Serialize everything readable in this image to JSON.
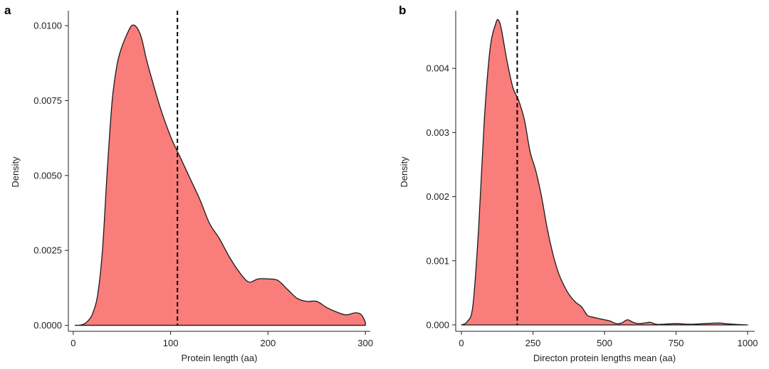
{
  "colors": {
    "fill": "#f87d7b",
    "stroke": "#1a1a1a",
    "axis": "#222222",
    "background": "#ffffff"
  },
  "chart_data": [
    {
      "type": "area",
      "panel": "a",
      "xlabel": "Protein length (aa)",
      "ylabel": "Density",
      "xlim": [
        -5,
        305
      ],
      "ylim": [
        -0.0002,
        0.0105
      ],
      "xticks": [
        0,
        100,
        200,
        300
      ],
      "xtick_labels": [
        "0",
        "100",
        "200",
        "300"
      ],
      "yticks": [
        0,
        0.0025,
        0.005,
        0.0075,
        0.01
      ],
      "ytick_labels": [
        "0.0000",
        "0.0025",
        "0.0050",
        "0.0075",
        "0.0100"
      ],
      "vline": 107,
      "series": [
        {
          "name": "density",
          "x": [
            2,
            8,
            12,
            16,
            20,
            25,
            30,
            35,
            40,
            45,
            50,
            55,
            60,
            65,
            70,
            75,
            80,
            90,
            100,
            107,
            110,
            120,
            130,
            140,
            150,
            160,
            170,
            180,
            190,
            200,
            210,
            220,
            230,
            240,
            250,
            260,
            270,
            280,
            290,
            296,
            300
          ],
          "y": [
            0,
            1e-05,
            6e-05,
            0.00018,
            0.0004,
            0.001,
            0.0025,
            0.0052,
            0.0075,
            0.0087,
            0.0093,
            0.0097,
            0.01,
            0.00995,
            0.0096,
            0.0089,
            0.0083,
            0.0072,
            0.0063,
            0.0058,
            0.0056,
            0.0049,
            0.0042,
            0.0034,
            0.0029,
            0.0023,
            0.0018,
            0.00145,
            0.00155,
            0.00155,
            0.0015,
            0.0012,
            0.0009,
            0.0008,
            0.0008,
            0.0006,
            0.00045,
            0.00035,
            0.00042,
            0.00035,
            0.0001
          ]
        }
      ]
    },
    {
      "type": "area",
      "panel": "b",
      "xlabel": "Directon protein lengths mean (aa)",
      "ylabel": "Density",
      "xlim": [
        -20,
        1025
      ],
      "ylim": [
        -0.0001,
        0.0049
      ],
      "xticks": [
        0,
        250,
        500,
        750,
        1000
      ],
      "xtick_labels": [
        "0",
        "250",
        "500",
        "750",
        "1000"
      ],
      "yticks": [
        0,
        0.001,
        0.002,
        0.003,
        0.004
      ],
      "ytick_labels": [
        "0.000",
        "0.001",
        "0.002",
        "0.003",
        "0.004"
      ],
      "vline": 195,
      "series": [
        {
          "name": "density",
          "x": [
            0,
            20,
            40,
            60,
            80,
            100,
            120,
            130,
            140,
            160,
            180,
            200,
            220,
            240,
            260,
            280,
            300,
            320,
            340,
            360,
            380,
            400,
            420,
            440,
            460,
            480,
            500,
            520,
            540,
            560,
            580,
            600,
            620,
            640,
            660,
            680,
            700,
            750,
            800,
            850,
            900,
            920,
            950,
            1000
          ],
          "y": [
            0,
            5e-05,
            0.0003,
            0.0015,
            0.0032,
            0.0043,
            0.0047,
            0.00475,
            0.0046,
            0.0041,
            0.0037,
            0.0035,
            0.0032,
            0.0027,
            0.0024,
            0.002,
            0.0015,
            0.0011,
            0.0008,
            0.0006,
            0.00045,
            0.00035,
            0.00028,
            0.00015,
            0.00012,
            0.0001,
            8e-05,
            6e-05,
            2e-05,
            3e-05,
            8e-05,
            4e-05,
            2e-05,
            3e-05,
            4e-05,
            1e-05,
            1e-05,
            2e-05,
            1e-05,
            2e-05,
            3e-05,
            2e-05,
            1e-05,
            0
          ]
        }
      ]
    }
  ]
}
